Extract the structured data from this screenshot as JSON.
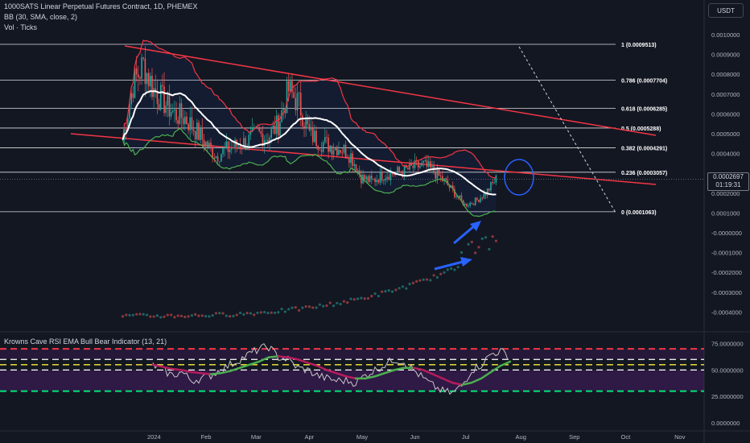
{
  "header": {
    "symbol_line": "1000SATS Linear Perpetual Futures Contract, 1D, PHEMEX",
    "bb_line": "BB (30, SMA, close, 2)",
    "vol_line": "Vol · Ticks",
    "currency_button": "USDT"
  },
  "indicator": {
    "title": "Krowns Cave RSI EMA Bull Bear Indicator (13, 21)"
  },
  "current_price": {
    "value": "0.0002697",
    "countdown": "01:19:31"
  },
  "colors": {
    "background": "#131722",
    "bull_candle": "#26a69a",
    "bear_candle": "#ef5350",
    "bb_upper_lower_red": "#f23645",
    "bb_lower_green": "#4caf50",
    "bb_basis_white": "#ffffff",
    "trendline": "#f23645",
    "annotation_blue": "#2962ff",
    "rsi_line": "#c8c8c8",
    "ema_bull": "#4caf50",
    "ema_bear": "#b71c5c",
    "dashed_red": "#f23645",
    "dashed_green": "#00e676",
    "dashed_yellow": "#ffeb3b",
    "dashed_white": "#ffffff"
  },
  "chart_data": [
    {
      "type": "candlestick",
      "title": "1000SATS Linear Perpetual Futures Contract, 1D, PHEMEX",
      "ylim": [
        -0.0005,
        0.001
      ],
      "y_ticks": [
        "0.0010000",
        "0.0009000",
        "0.0008000",
        "0.0007000",
        "0.0006000",
        "0.0005000",
        "0.0004000",
        "0.0003000",
        "0.0002000",
        "0.0001000",
        "-0.0000000",
        "-0.0001000",
        "-0.0002000",
        "-0.0003000",
        "-0.0004000"
      ],
      "x_ticks": [
        "2024",
        "Feb",
        "Mar",
        "Apr",
        "May",
        "Jun",
        "Jul",
        "Aug",
        "Sep",
        "Oct",
        "Nov"
      ],
      "fib_levels": [
        {
          "label": "1 (0.0009513)",
          "value": 0.0009513
        },
        {
          "label": "0.786 (0.0007704)",
          "value": 0.0007704
        },
        {
          "label": "0.618 (0.0006285)",
          "value": 0.0006285
        },
        {
          "label": "0.5 (0.0005288)",
          "value": 0.0005288
        },
        {
          "label": "0.382 (0.0004291)",
          "value": 0.0004291
        },
        {
          "label": "0.236 (0.0003057)",
          "value": 0.0003057
        },
        {
          "label": "0 (0.0001063)",
          "value": 0.0001063
        }
      ],
      "trend_close": [
        0.00047,
        0.00075,
        0.00085,
        0.00072,
        0.00066,
        0.0006,
        0.00058,
        0.00052,
        0.00045,
        0.00039,
        0.00042,
        0.00044,
        0.00046,
        0.0005,
        0.00048,
        0.00055,
        0.00072,
        0.00065,
        0.0005,
        0.00046,
        0.00044,
        0.00043,
        0.00039,
        0.00028,
        0.00026,
        0.00029,
        0.0003,
        0.00031,
        0.00033,
        0.00034,
        0.00031,
        0.00026,
        0.0002,
        0.00014,
        0.00016,
        0.0002,
        0.00027
      ],
      "current_price": 0.0002697
    },
    {
      "type": "line",
      "title": "Krowns Cave RSI EMA Bull Bear Indicator (13, 21)",
      "ylim": [
        0,
        80
      ],
      "y_ticks": [
        "75.0000000",
        "50.0000000",
        "25.0000000",
        "0.0000000"
      ],
      "levels": [
        70,
        60,
        55,
        50,
        30
      ],
      "series": [
        {
          "name": "RSI",
          "values": [
            55,
            50,
            45,
            48,
            40,
            42,
            45,
            50,
            55,
            60,
            65,
            70,
            72,
            62,
            60,
            52,
            50,
            45,
            42,
            40,
            40,
            38,
            45,
            50,
            55,
            60,
            58,
            50,
            42,
            35,
            30,
            28,
            35,
            50,
            55,
            65,
            68,
            62
          ]
        },
        {
          "name": "EMA",
          "values": [
            55,
            53,
            51,
            50,
            48,
            47,
            46,
            47,
            49,
            52,
            55,
            58,
            62,
            63,
            62,
            60,
            57,
            54,
            50,
            47,
            44,
            42,
            42,
            44,
            47,
            50,
            52,
            52,
            50,
            46,
            42,
            38,
            36,
            38,
            42,
            48,
            54,
            58
          ]
        }
      ]
    }
  ]
}
